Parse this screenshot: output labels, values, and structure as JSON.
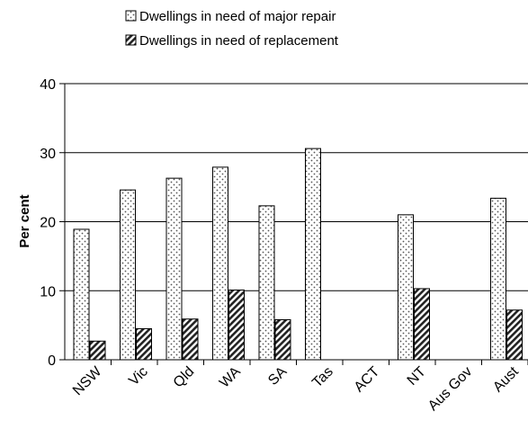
{
  "chart_data": {
    "type": "bar",
    "title": "",
    "xlabel": "",
    "ylabel": "Per cent",
    "ylim": [
      0,
      40
    ],
    "yticks": [
      0,
      10,
      20,
      30,
      40
    ],
    "grid": true,
    "legend_position": "top",
    "categories": [
      "NSW",
      "Vic",
      "Qld",
      "WA",
      "SA",
      "Tas",
      "ACT",
      "NT",
      "Aus Gov",
      "Aust"
    ],
    "series": [
      {
        "name": "Dwellings in need of major repair",
        "pattern": "dotted",
        "values": [
          18.9,
          24.6,
          26.3,
          27.9,
          22.3,
          30.6,
          null,
          21.0,
          null,
          23.4
        ]
      },
      {
        "name": "Dwellings in need of replacement",
        "pattern": "hatched",
        "values": [
          2.7,
          4.5,
          5.9,
          10.1,
          5.8,
          null,
          null,
          10.3,
          null,
          7.2
        ]
      }
    ]
  }
}
